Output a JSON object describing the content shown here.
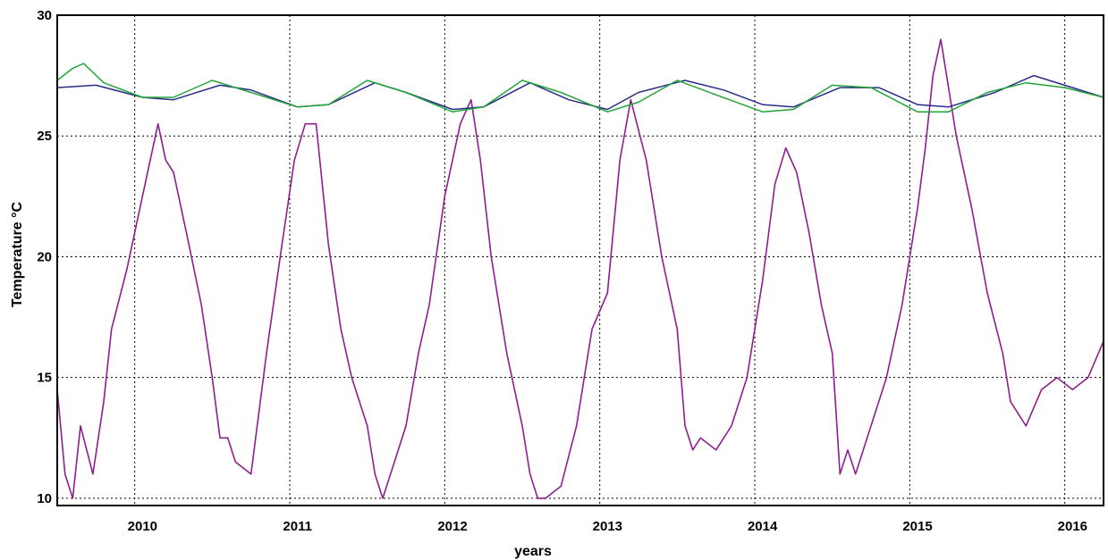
{
  "chart_data": {
    "type": "line",
    "title": "",
    "xlabel": "years",
    "ylabel": "Temperature °C",
    "xlim": [
      2009.45,
      2016.2
    ],
    "ylim": [
      9.7,
      30
    ],
    "grid": true,
    "legend": "none",
    "x_ticks": [
      {
        "value": 2010.0,
        "label": "2010",
        "grid": 2009.95
      },
      {
        "value": 2011.0,
        "label": "2011",
        "grid": 2010.95
      },
      {
        "value": 2012.0,
        "label": "2012",
        "grid": 2011.95
      },
      {
        "value": 2013.0,
        "label": "2013",
        "grid": 2012.95
      },
      {
        "value": 2014.0,
        "label": "2014",
        "grid": 2013.95
      },
      {
        "value": 2015.0,
        "label": "2015",
        "grid": 2014.95
      },
      {
        "value": 2016.0,
        "label": "2016",
        "grid": 2015.95
      }
    ],
    "y_ticks": [
      10,
      15,
      20,
      25,
      30
    ],
    "series": [
      {
        "color": "#8e1e8e",
        "x": [
          2009.45,
          2009.5,
          2009.55,
          2009.6,
          2009.68,
          2009.75,
          2009.8,
          2009.9,
          2010.0,
          2010.1,
          2010.15,
          2010.2,
          2010.3,
          2010.38,
          2010.45,
          2010.5,
          2010.55,
          2010.6,
          2010.7,
          2010.8,
          2010.9,
          2010.98,
          2011.05,
          2011.12,
          2011.2,
          2011.28,
          2011.35,
          2011.45,
          2011.5,
          2011.55,
          2011.6,
          2011.7,
          2011.78,
          2011.85,
          2011.95,
          2012.05,
          2012.12,
          2012.18,
          2012.25,
          2012.35,
          2012.45,
          2012.5,
          2012.55,
          2012.6,
          2012.7,
          2012.8,
          2012.9,
          2013.0,
          2013.08,
          2013.15,
          2013.25,
          2013.35,
          2013.45,
          2013.5,
          2013.55,
          2013.6,
          2013.7,
          2013.8,
          2013.9,
          2014.0,
          2014.08,
          2014.15,
          2014.22,
          2014.3,
          2014.38,
          2014.45,
          2014.5,
          2014.55,
          2014.6,
          2014.7,
          2014.8,
          2014.9,
          2015.0,
          2015.05,
          2015.1,
          2015.15,
          2015.2,
          2015.25,
          2015.35,
          2015.45,
          2015.55,
          2015.6,
          2015.7,
          2015.8,
          2015.9,
          2016.0,
          2016.1,
          2016.2
        ],
        "values": [
          14.5,
          11.0,
          10.0,
          13.0,
          11.0,
          14.0,
          17.0,
          19.5,
          22.5,
          25.5,
          24.0,
          23.5,
          20.5,
          18.0,
          15.0,
          12.5,
          12.5,
          11.5,
          11.0,
          16.0,
          20.5,
          24.0,
          25.5,
          25.5,
          20.5,
          17.0,
          15.0,
          13.0,
          11.0,
          10.0,
          11.0,
          13.0,
          16.0,
          18.0,
          22.5,
          25.5,
          26.5,
          24.0,
          20.0,
          16.0,
          13.0,
          11.0,
          10.0,
          10.0,
          10.5,
          13.0,
          17.0,
          18.5,
          24.0,
          26.5,
          24.0,
          20.0,
          17.0,
          13.0,
          12.0,
          12.5,
          12.0,
          13.0,
          15.0,
          19.0,
          23.0,
          24.5,
          23.5,
          21.0,
          18.0,
          16.0,
          11.0,
          12.0,
          11.0,
          13.0,
          15.0,
          18.0,
          22.0,
          24.5,
          27.5,
          29.0,
          27.0,
          25.0,
          22.0,
          18.5,
          16.0,
          14.0,
          13.0,
          14.5,
          15.0,
          14.5,
          15.0,
          16.5
        ]
      },
      {
        "color": "#2a2a8a",
        "x": [
          2009.45,
          2009.7,
          2010.0,
          2010.2,
          2010.5,
          2010.7,
          2011.0,
          2011.2,
          2011.5,
          2011.7,
          2012.0,
          2012.2,
          2012.5,
          2012.75,
          2013.0,
          2013.2,
          2013.5,
          2013.75,
          2014.0,
          2014.2,
          2014.5,
          2014.75,
          2015.0,
          2015.2,
          2015.5,
          2015.75,
          2016.0,
          2016.2
        ],
        "values": [
          27.0,
          27.1,
          26.6,
          26.5,
          27.1,
          26.9,
          26.2,
          26.3,
          27.2,
          26.8,
          26.1,
          26.2,
          27.2,
          26.5,
          26.1,
          26.8,
          27.3,
          26.9,
          26.3,
          26.2,
          27.0,
          27.0,
          26.3,
          26.2,
          26.8,
          27.5,
          27.0,
          26.6
        ]
      },
      {
        "color": "#22a43a",
        "x": [
          2009.45,
          2009.55,
          2009.62,
          2009.75,
          2010.0,
          2010.2,
          2010.45,
          2010.7,
          2011.0,
          2011.2,
          2011.45,
          2011.7,
          2012.0,
          2012.2,
          2012.45,
          2012.7,
          2013.0,
          2013.2,
          2013.45,
          2013.7,
          2014.0,
          2014.2,
          2014.45,
          2014.7,
          2015.0,
          2015.2,
          2015.45,
          2015.7,
          2015.95,
          2016.2
        ],
        "values": [
          27.3,
          27.8,
          28.0,
          27.2,
          26.6,
          26.6,
          27.3,
          26.8,
          26.2,
          26.3,
          27.3,
          26.8,
          26.0,
          26.2,
          27.3,
          26.8,
          26.0,
          26.4,
          27.3,
          26.7,
          26.0,
          26.1,
          27.1,
          27.0,
          26.0,
          26.0,
          26.8,
          27.2,
          27.0,
          26.6
        ]
      }
    ]
  }
}
